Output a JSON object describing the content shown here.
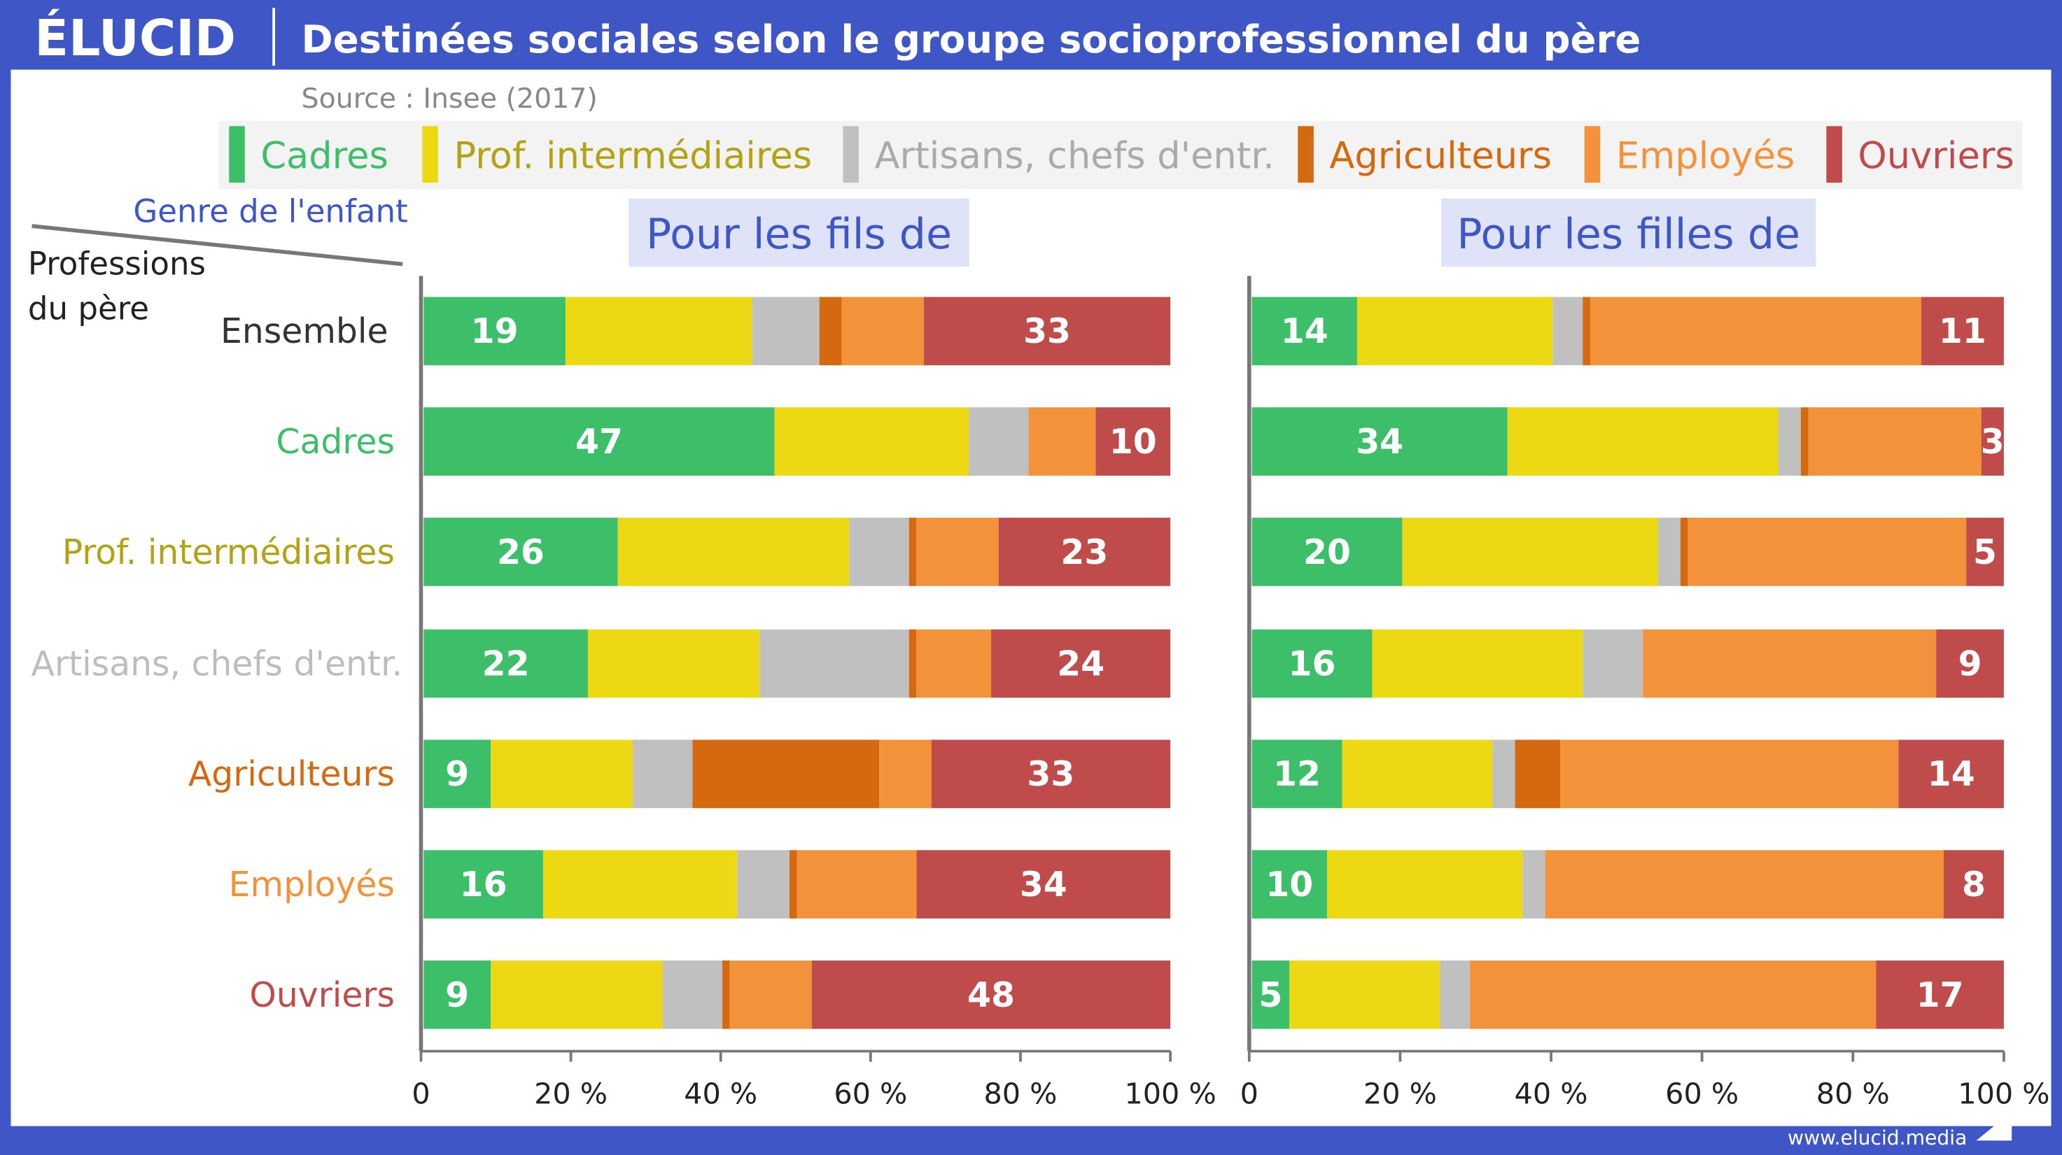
{
  "header": {
    "logo": "ÉLUCID",
    "title": "Destinées sociales selon le groupe socioprofessionnel du père",
    "source": "Source : Insee (2017)",
    "footer_url": "www.elucid.media"
  },
  "colors": {
    "frame": "#3f57c6",
    "Cadres": "#3dbf6a",
    "Prof. intermédiaires": "#ecd913",
    "Artisans, chefs d'entr.": "#c0c0c0",
    "Agriculteurs": "#d4690f",
    "Employés": "#f2933b",
    "Ouvriers": "#bf4b4b"
  },
  "label_colors": {
    "Ensemble": "#333333",
    "Cadres": "#3dbf6a",
    "Prof. intermédiaires": "#b3a314",
    "Artisans, chefs d'entr.": "#bdbdbd",
    "Agriculteurs": "#d4690f",
    "Employés": "#f2933b",
    "Ouvriers": "#bf4b4b"
  },
  "corner": {
    "col_label": "Genre de l'enfant",
    "row_label_1": "Professions",
    "row_label_2": "du père"
  },
  "chart_data": [
    {
      "type": "bar",
      "orientation": "horizontal",
      "stacked": true,
      "title": "Pour les fils de",
      "categories": [
        "Ensemble",
        "Cadres",
        "Prof. intermédiaires",
        "Artisans, chefs d'entr.",
        "Agriculteurs",
        "Employés",
        "Ouvriers"
      ],
      "xlim": [
        0,
        100
      ],
      "xticks": [
        "0",
        "20 %",
        "40 %",
        "60 %",
        "80 %",
        "100 %"
      ],
      "legend": "top",
      "series": [
        {
          "name": "Cadres",
          "values": [
            19,
            47,
            26,
            22,
            9,
            16,
            9
          ]
        },
        {
          "name": "Prof. intermédiaires",
          "values": [
            25,
            26,
            31,
            23,
            19,
            26,
            23
          ]
        },
        {
          "name": "Artisans, chefs d'entr.",
          "values": [
            9,
            8,
            8,
            20,
            8,
            7,
            8
          ]
        },
        {
          "name": "Agriculteurs",
          "values": [
            3,
            0,
            1,
            1,
            25,
            1,
            1
          ]
        },
        {
          "name": "Employés",
          "values": [
            11,
            9,
            11,
            10,
            7,
            16,
            11
          ]
        },
        {
          "name": "Ouvriers",
          "values": [
            33,
            10,
            23,
            24,
            33,
            34,
            48
          ]
        }
      ]
    },
    {
      "type": "bar",
      "orientation": "horizontal",
      "stacked": true,
      "title": "Pour les filles de",
      "categories": [
        "Ensemble",
        "Cadres",
        "Prof. intermédiaires",
        "Artisans, chefs d'entr.",
        "Agriculteurs",
        "Employés",
        "Ouvriers"
      ],
      "xlim": [
        0,
        100
      ],
      "xticks": [
        "0",
        "20 %",
        "40 %",
        "60 %",
        "80 %",
        "100 %"
      ],
      "legend": "top",
      "series": [
        {
          "name": "Cadres",
          "values": [
            14,
            34,
            20,
            16,
            12,
            10,
            5
          ]
        },
        {
          "name": "Prof. intermédiaires",
          "values": [
            26,
            36,
            34,
            28,
            20,
            26,
            20
          ]
        },
        {
          "name": "Artisans, chefs d'entr.",
          "values": [
            4,
            3,
            3,
            8,
            3,
            3,
            4
          ]
        },
        {
          "name": "Agriculteurs",
          "values": [
            1,
            1,
            1,
            0,
            6,
            0,
            0
          ]
        },
        {
          "name": "Employés",
          "values": [
            44,
            23,
            37,
            39,
            45,
            53,
            54
          ]
        },
        {
          "name": "Ouvriers",
          "values": [
            11,
            3,
            5,
            9,
            14,
            8,
            17
          ]
        }
      ]
    }
  ]
}
